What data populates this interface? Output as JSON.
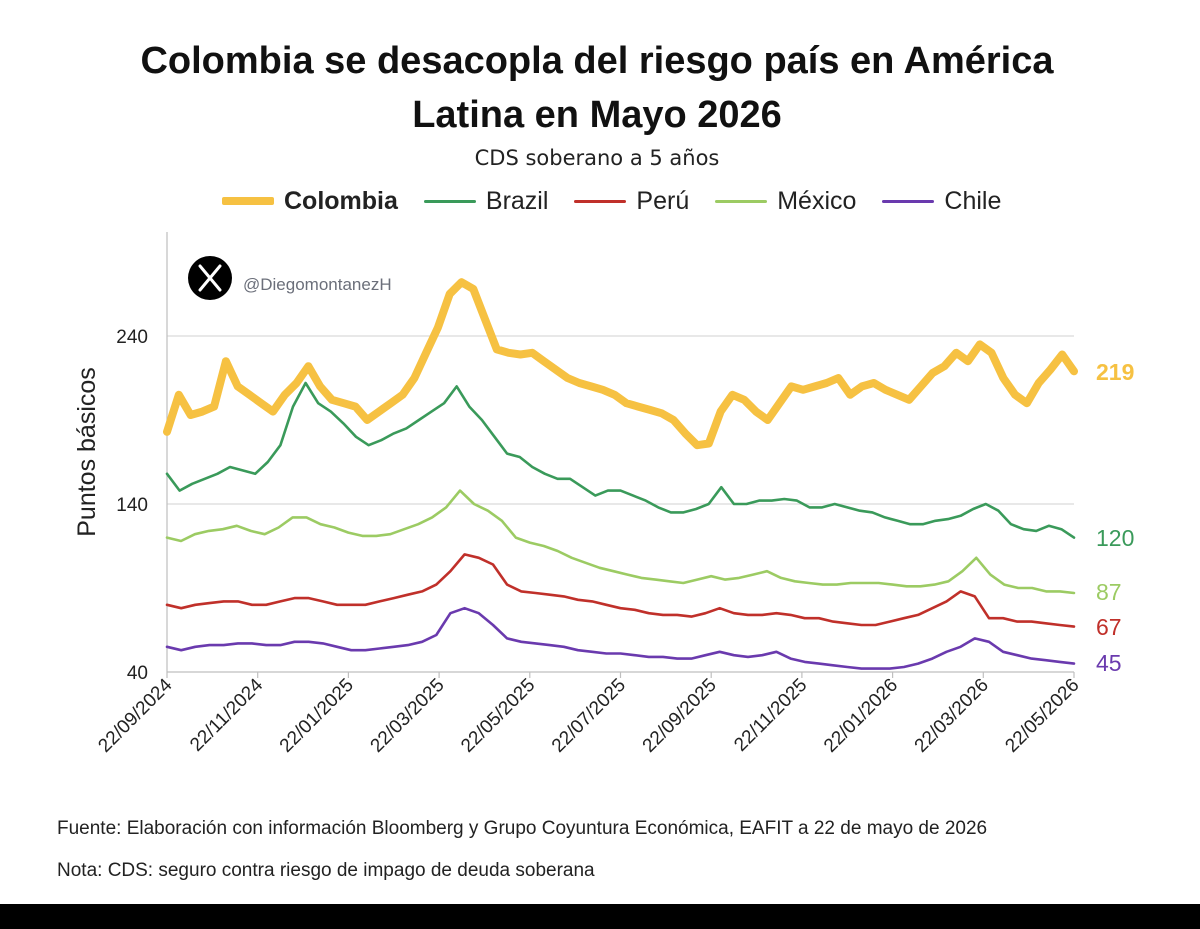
{
  "title_line1": "Colombia se desacopla del riesgo país en América",
  "title_line2": "Latina en Mayo 2026",
  "subtitle": "CDS soberano a 5 años",
  "watermark": "@DiegomontanezH",
  "watermark_icon": "x-logo-icon",
  "source_note": "Fuente: Elaboración con información Bloomberg y Grupo Coyuntura Económica, EAFIT a 22 de mayo de 2026",
  "definition_note": "Nota: CDS: seguro contra riesgo de impago de deuda soberana",
  "chart_data": {
    "type": "line",
    "title": "Colombia se desacopla del riesgo país en América Latina en Mayo 2026",
    "subtitle": "CDS soberano a 5 años",
    "ylabel": "Puntos básicos",
    "xlabel": "",
    "ylim": [
      40,
      240
    ],
    "yticks": [
      40,
      140,
      240
    ],
    "x_tick_labels": [
      "22/09/2024",
      "22/11/2024",
      "22/01/2025",
      "22/03/2025",
      "22/05/2025",
      "22/07/2025",
      "22/09/2025",
      "22/11/2025",
      "22/01/2026",
      "22/03/2026",
      "22/05/2026"
    ],
    "x_labels_rotated": true,
    "grid": "horizontal",
    "legend_position": "top",
    "series": [
      {
        "name": "Colombia",
        "color": "#F6C142",
        "width": "thick",
        "bold": true,
        "end_label": "219",
        "values": [
          183,
          205,
          193,
          195,
          198,
          225,
          210,
          205,
          200,
          195,
          205,
          212,
          222,
          210,
          202,
          200,
          198,
          190,
          195,
          200,
          205,
          215,
          230,
          245,
          265,
          272,
          268,
          250,
          232,
          230,
          229,
          230,
          225,
          220,
          215,
          212,
          210,
          208,
          205,
          200,
          198,
          196,
          194,
          190,
          182,
          175,
          176,
          195,
          205,
          202,
          195,
          190,
          200,
          210,
          208,
          210,
          212,
          215,
          205,
          210,
          212,
          208,
          205,
          202,
          210,
          218,
          222,
          230,
          225,
          235,
          230,
          215,
          205,
          200,
          212,
          220,
          229,
          219
        ]
      },
      {
        "name": "Brazil",
        "color": "#3A9A5A",
        "width": "thin",
        "end_label": "120",
        "values": [
          158,
          148,
          152,
          155,
          158,
          162,
          160,
          158,
          165,
          175,
          198,
          212,
          200,
          195,
          188,
          180,
          175,
          178,
          182,
          185,
          190,
          195,
          200,
          210,
          198,
          190,
          180,
          170,
          168,
          162,
          158,
          155,
          155,
          150,
          145,
          148,
          148,
          145,
          142,
          138,
          135,
          135,
          137,
          140,
          150,
          140,
          140,
          142,
          142,
          143,
          142,
          138,
          138,
          140,
          138,
          136,
          135,
          132,
          130,
          128,
          128,
          130,
          131,
          133,
          137,
          140,
          136,
          128,
          125,
          124,
          127,
          125,
          120
        ]
      },
      {
        "name": "México",
        "color": "#9CCB63",
        "width": "thin",
        "end_label": "87",
        "values": [
          120,
          118,
          122,
          124,
          125,
          127,
          124,
          122,
          126,
          132,
          132,
          128,
          126,
          123,
          121,
          121,
          122,
          125,
          128,
          132,
          138,
          148,
          140,
          136,
          130,
          120,
          117,
          115,
          112,
          108,
          105,
          102,
          100,
          98,
          96,
          95,
          94,
          93,
          95,
          97,
          95,
          96,
          98,
          100,
          96,
          94,
          93,
          92,
          92,
          93,
          93,
          93,
          92,
          91,
          91,
          92,
          94,
          100,
          108,
          98,
          92,
          90,
          90,
          88,
          88,
          87
        ]
      },
      {
        "name": "Perú",
        "color": "#C0302A",
        "width": "thin",
        "end_label": "67",
        "values": [
          80,
          78,
          80,
          81,
          82,
          82,
          80,
          80,
          82,
          84,
          84,
          82,
          80,
          80,
          80,
          82,
          84,
          86,
          88,
          92,
          100,
          110,
          108,
          104,
          92,
          88,
          87,
          86,
          85,
          83,
          82,
          80,
          78,
          77,
          75,
          74,
          74,
          73,
          75,
          78,
          75,
          74,
          74,
          75,
          74,
          72,
          72,
          70,
          69,
          68,
          68,
          70,
          72,
          74,
          78,
          82,
          88,
          85,
          72,
          72,
          70,
          70,
          69,
          68,
          67
        ]
      },
      {
        "name": "Chile",
        "color": "#6A3AAE",
        "width": "thin",
        "end_label": "45",
        "values": [
          55,
          53,
          55,
          56,
          56,
          57,
          57,
          56,
          56,
          58,
          58,
          57,
          55,
          53,
          53,
          54,
          55,
          56,
          58,
          62,
          75,
          78,
          75,
          68,
          60,
          58,
          57,
          56,
          55,
          53,
          52,
          51,
          51,
          50,
          49,
          49,
          48,
          48,
          50,
          52,
          50,
          49,
          50,
          52,
          48,
          46,
          45,
          44,
          43,
          42,
          42,
          42,
          43,
          45,
          48,
          52,
          55,
          60,
          58,
          52,
          50,
          48,
          47,
          46,
          45
        ]
      }
    ]
  }
}
